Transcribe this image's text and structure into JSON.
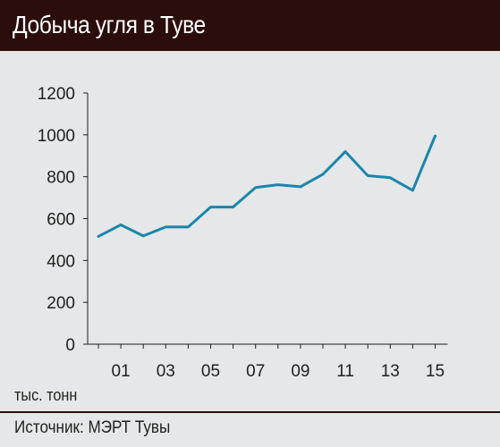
{
  "header": {
    "title": "Добыча угля в Туве"
  },
  "chart_data": {
    "type": "line",
    "title": "Добыча угля в Туве",
    "ylabel": "тыс. тонн",
    "xlabel": "",
    "ylim": [
      0,
      1200
    ],
    "yticks": [
      0,
      200,
      400,
      600,
      800,
      1000,
      1200
    ],
    "x": [
      2000,
      2001,
      2002,
      2003,
      2004,
      2005,
      2006,
      2007,
      2008,
      2009,
      2010,
      2011,
      2012,
      2013,
      2014,
      2015
    ],
    "xtick_labels": [
      "01",
      "03",
      "05",
      "07",
      "09",
      "11",
      "13",
      "15"
    ],
    "xtick_values": [
      2001,
      2003,
      2005,
      2007,
      2009,
      2011,
      2013,
      2015
    ],
    "series": [
      {
        "values": [
          515,
          570,
          517,
          560,
          560,
          655,
          655,
          748,
          762,
          752,
          812,
          920,
          805,
          795,
          735,
          995
        ]
      }
    ],
    "line_color": "#1a86aa",
    "grid": false
  },
  "footer": {
    "unit": "тыс. тонн",
    "source": "Источник: МЭРТ Тувы"
  },
  "colors": {
    "header_bg": "#2b0d0c",
    "background": "#e6e7e8",
    "line": "#1a86aa"
  }
}
